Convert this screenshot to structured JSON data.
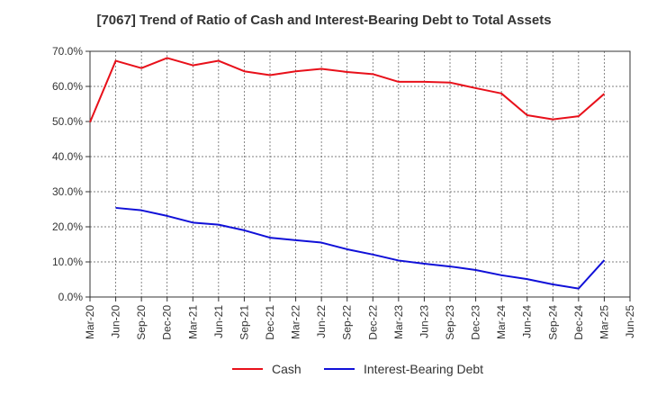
{
  "chart_data": {
    "type": "line",
    "title": "[7067]  Trend of Ratio of Cash and Interest-Bearing Debt to Total Assets",
    "xlabel": "",
    "ylabel": "",
    "x_tick_labels": [
      "Mar-20",
      "Jun-20",
      "Sep-20",
      "Dec-20",
      "Mar-21",
      "Jun-21",
      "Sep-21",
      "Dec-21",
      "Mar-22",
      "Jun-22",
      "Sep-22",
      "Dec-22",
      "Mar-23",
      "Jun-23",
      "Sep-23",
      "Dec-23",
      "Mar-24",
      "Jun-24",
      "Sep-24",
      "Dec-24",
      "Mar-25",
      "Jun-25"
    ],
    "y_tick_labels": [
      "0.0%",
      "10.0%",
      "20.0%",
      "30.0%",
      "40.0%",
      "50.0%",
      "60.0%",
      "70.0%"
    ],
    "ylim": [
      0,
      70
    ],
    "y_unit": "%",
    "grid": true,
    "legend_position": "bottom",
    "series": [
      {
        "name": "Cash",
        "color": "#e8101a",
        "values": [
          49.8,
          67.3,
          65.2,
          68.1,
          66.0,
          67.3,
          64.3,
          63.2,
          64.3,
          65.0,
          64.1,
          63.5,
          61.3,
          61.3,
          61.1,
          59.5,
          58.0,
          51.8,
          50.6,
          51.5,
          57.9,
          null
        ]
      },
      {
        "name": "Interest-Bearing Debt",
        "color": "#1010d8",
        "values": [
          null,
          25.4,
          24.7,
          23.1,
          21.2,
          20.6,
          19.0,
          16.9,
          16.2,
          15.5,
          13.6,
          12.1,
          10.4,
          9.5,
          8.7,
          7.7,
          6.2,
          5.1,
          3.6,
          2.4,
          10.5,
          null
        ]
      }
    ]
  }
}
